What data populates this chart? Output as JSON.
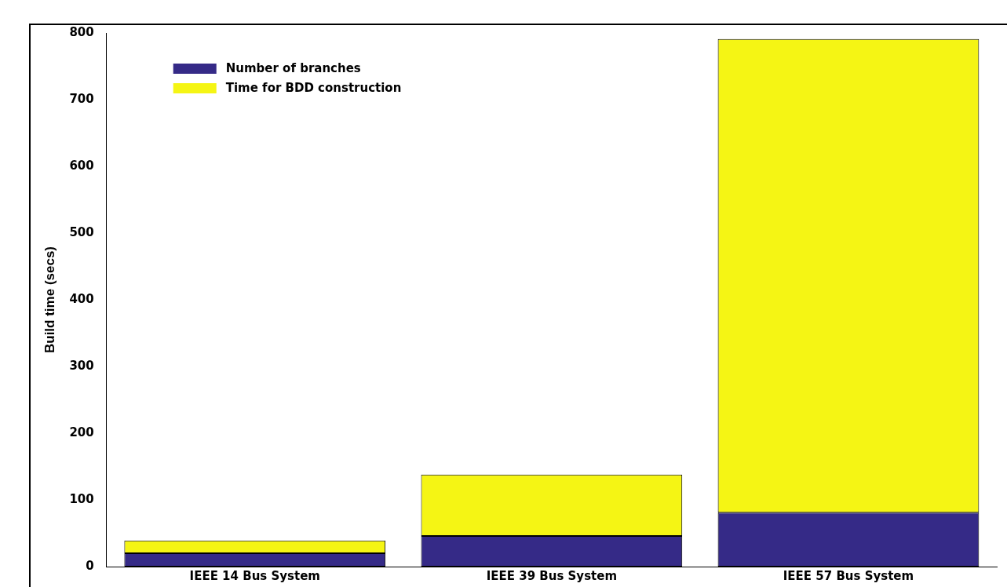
{
  "chart_data": {
    "type": "bar",
    "stacked": true,
    "ylabel": "Build time (secs)",
    "categories": [
      "IEEE 14 Bus System",
      "IEEE 39 Bus System",
      "IEEE 57 Bus System"
    ],
    "series": [
      {
        "name": "Number of branches",
        "color": "#352a87",
        "values": [
          20,
          46,
          81
        ]
      },
      {
        "name": "Time for BDD construction",
        "color": "#f5f514",
        "values": [
          19,
          92,
          710
        ]
      }
    ],
    "ylim": [
      0,
      800
    ],
    "yticks": [
      0,
      100,
      200,
      300,
      400,
      500,
      600,
      700,
      800
    ],
    "grid": false,
    "legend": "top left"
  }
}
